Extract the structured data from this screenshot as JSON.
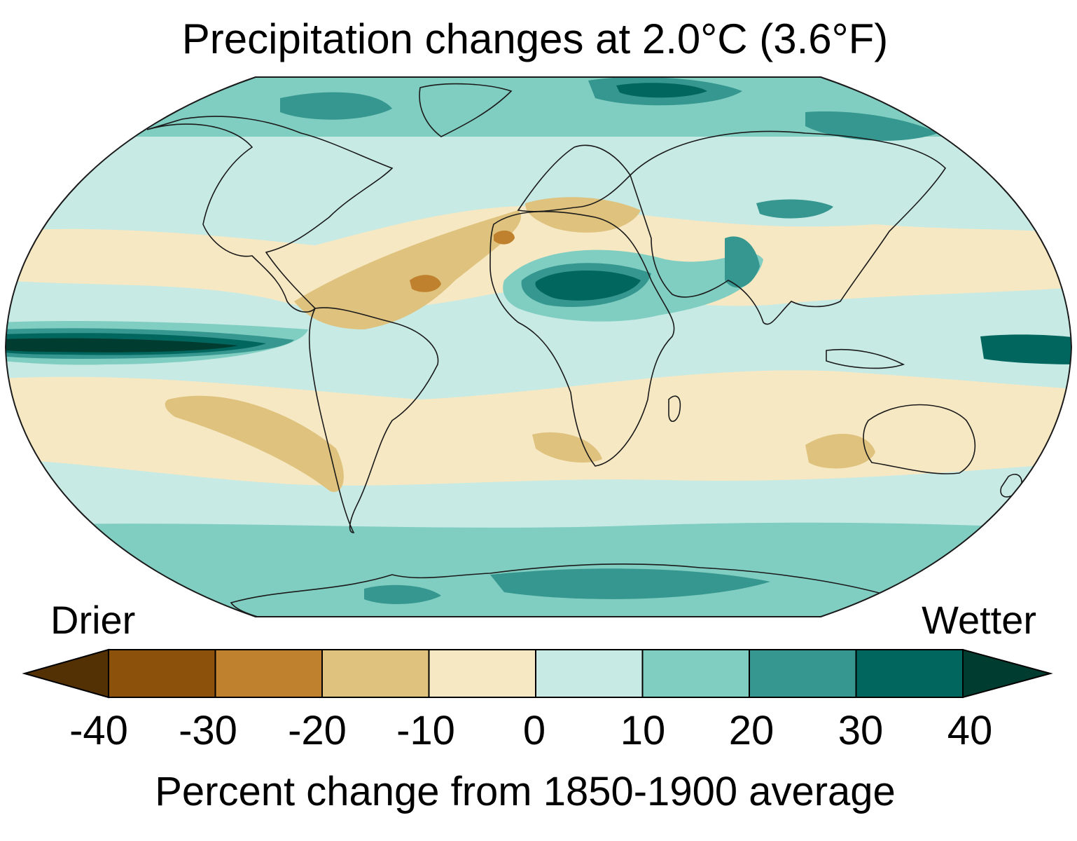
{
  "map": {
    "title": "Precipitation changes at 2.0°C (3.6°F)",
    "projection": "Robinson",
    "variable": "Percent change in precipitation",
    "colors": {
      "below_-40": "#543005",
      "-40_-30": "#8c510a",
      "-30_-20": "#bf812d",
      "-20_-10": "#dfc27d",
      "-10_0": "#f6e8c3",
      "0_10": "#c7eae5",
      "10_20": "#80cdc1",
      "20_30": "#35978f",
      "30_40": "#01665e",
      "above_40": "#003c30",
      "coastline": "#1a1a1a"
    }
  },
  "legend": {
    "left_label": "Drier",
    "right_label": "Wetter",
    "ticks": [
      "-40",
      "-30",
      "-20",
      "-10",
      "0",
      "10",
      "20",
      "30",
      "40"
    ],
    "axis_label": "Percent change from 1850-1900 average"
  }
}
